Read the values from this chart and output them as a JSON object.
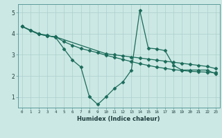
{
  "xlabel": "Humidex (Indice chaleur)",
  "bg_color": "#cce8e4",
  "line_color": "#1a6b5a",
  "grid_color": "#aacfcc",
  "xlim": [
    -0.5,
    23.5
  ],
  "ylim": [
    0.5,
    5.4
  ],
  "xticks": [
    0,
    1,
    2,
    3,
    4,
    5,
    6,
    7,
    8,
    9,
    10,
    11,
    12,
    13,
    14,
    15,
    16,
    17,
    18,
    19,
    20,
    21,
    22,
    23
  ],
  "yticks": [
    1,
    2,
    3,
    4,
    5
  ],
  "line1_x": [
    0,
    1,
    2,
    3,
    4,
    10,
    11,
    12,
    13,
    14,
    15,
    16,
    17,
    18,
    19,
    20,
    21,
    22,
    23
  ],
  "line1_y": [
    4.35,
    4.15,
    3.98,
    3.9,
    3.85,
    3.05,
    3.0,
    2.95,
    2.9,
    2.85,
    2.8,
    2.75,
    2.7,
    2.65,
    2.6,
    2.55,
    2.5,
    2.45,
    2.35
  ],
  "line2_x": [
    0,
    1,
    2,
    3,
    4,
    5,
    6,
    7,
    8,
    9,
    10,
    11,
    12,
    13,
    14,
    15,
    16,
    17,
    18,
    19,
    20,
    21,
    22,
    23
  ],
  "line2_y": [
    4.35,
    4.15,
    3.98,
    3.9,
    3.85,
    3.62,
    3.45,
    3.3,
    3.2,
    3.1,
    2.98,
    2.88,
    2.78,
    2.68,
    2.58,
    2.5,
    2.42,
    2.36,
    2.3,
    2.26,
    2.22,
    2.2,
    2.18,
    2.15
  ],
  "line3_x": [
    0,
    2,
    3,
    4,
    5,
    6,
    7,
    8,
    9,
    10,
    11,
    12,
    13,
    14,
    15,
    16,
    17,
    18,
    19,
    20,
    21,
    22,
    23
  ],
  "line3_y": [
    4.35,
    4.0,
    3.92,
    3.82,
    3.28,
    2.75,
    2.42,
    1.02,
    0.65,
    1.02,
    1.42,
    1.72,
    2.28,
    5.1,
    3.32,
    3.28,
    3.2,
    2.5,
    2.28,
    2.28,
    2.28,
    2.28,
    2.1
  ]
}
